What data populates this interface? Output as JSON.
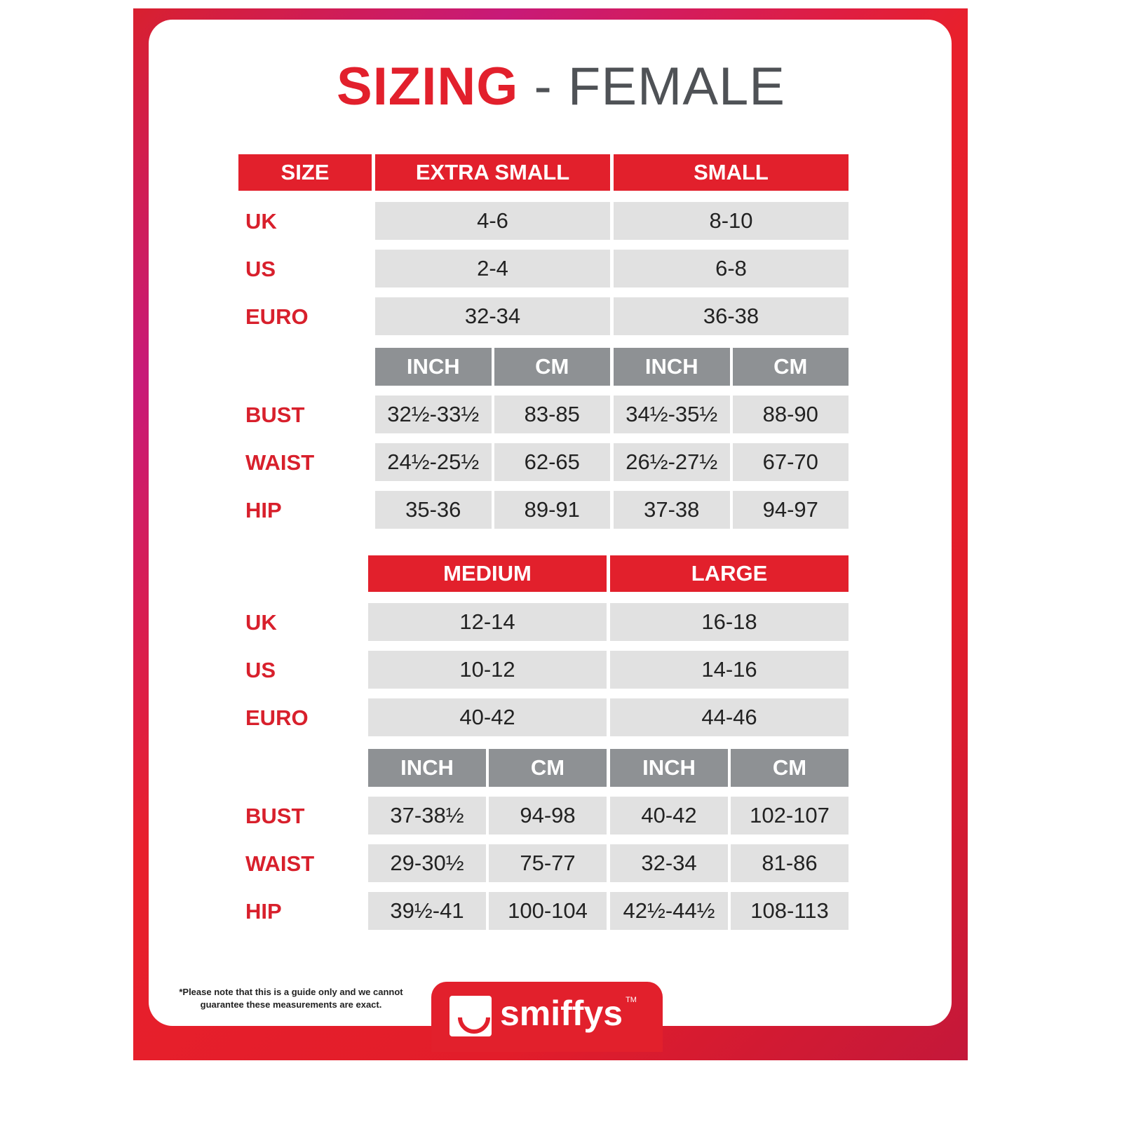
{
  "title": {
    "main": "SIZING",
    "sub": "- FEMALE"
  },
  "size_header": "SIZE",
  "units": [
    "INCH",
    "CM"
  ],
  "blocks": [
    {
      "sizes": [
        "EXTRA SMALL",
        "SMALL"
      ],
      "conversions": [
        {
          "label": "UK",
          "values": [
            "4-6",
            "8-10"
          ]
        },
        {
          "label": "US",
          "values": [
            "2-4",
            "6-8"
          ]
        },
        {
          "label": "EURO",
          "values": [
            "32-34",
            "36-38"
          ]
        }
      ],
      "measurements": [
        {
          "label": "BUST",
          "values": [
            "32½-33½",
            "83-85",
            "34½-35½",
            "88-90"
          ]
        },
        {
          "label": "WAIST",
          "values": [
            "24½-25½",
            "62-65",
            "26½-27½",
            "67-70"
          ]
        },
        {
          "label": "HIP",
          "values": [
            "35-36",
            "89-91",
            "37-38",
            "94-97"
          ]
        }
      ]
    },
    {
      "sizes": [
        "MEDIUM",
        "LARGE"
      ],
      "conversions": [
        {
          "label": "UK",
          "values": [
            "12-14",
            "16-18"
          ]
        },
        {
          "label": "US",
          "values": [
            "10-12",
            "14-16"
          ]
        },
        {
          "label": "EURO",
          "values": [
            "40-42",
            "44-46"
          ]
        }
      ],
      "measurements": [
        {
          "label": "BUST",
          "values": [
            "37-38½",
            "94-98",
            "40-42",
            "102-107"
          ]
        },
        {
          "label": "WAIST",
          "values": [
            "29-30½",
            "75-77",
            "32-34",
            "81-86"
          ]
        },
        {
          "label": "HIP",
          "values": [
            "39½-41",
            "100-104",
            "42½-44½",
            "108-113"
          ]
        }
      ]
    }
  ],
  "footer": {
    "note": "*Please note that this is a guide only and we cannot guarantee these measurements are exact.",
    "brand": "smiffys",
    "tm": "TM"
  },
  "colors": {
    "accent": "#e2202c",
    "unit_header": "#8e9194",
    "cell": "#e1e1e1",
    "title_gray": "#4f5256"
  }
}
